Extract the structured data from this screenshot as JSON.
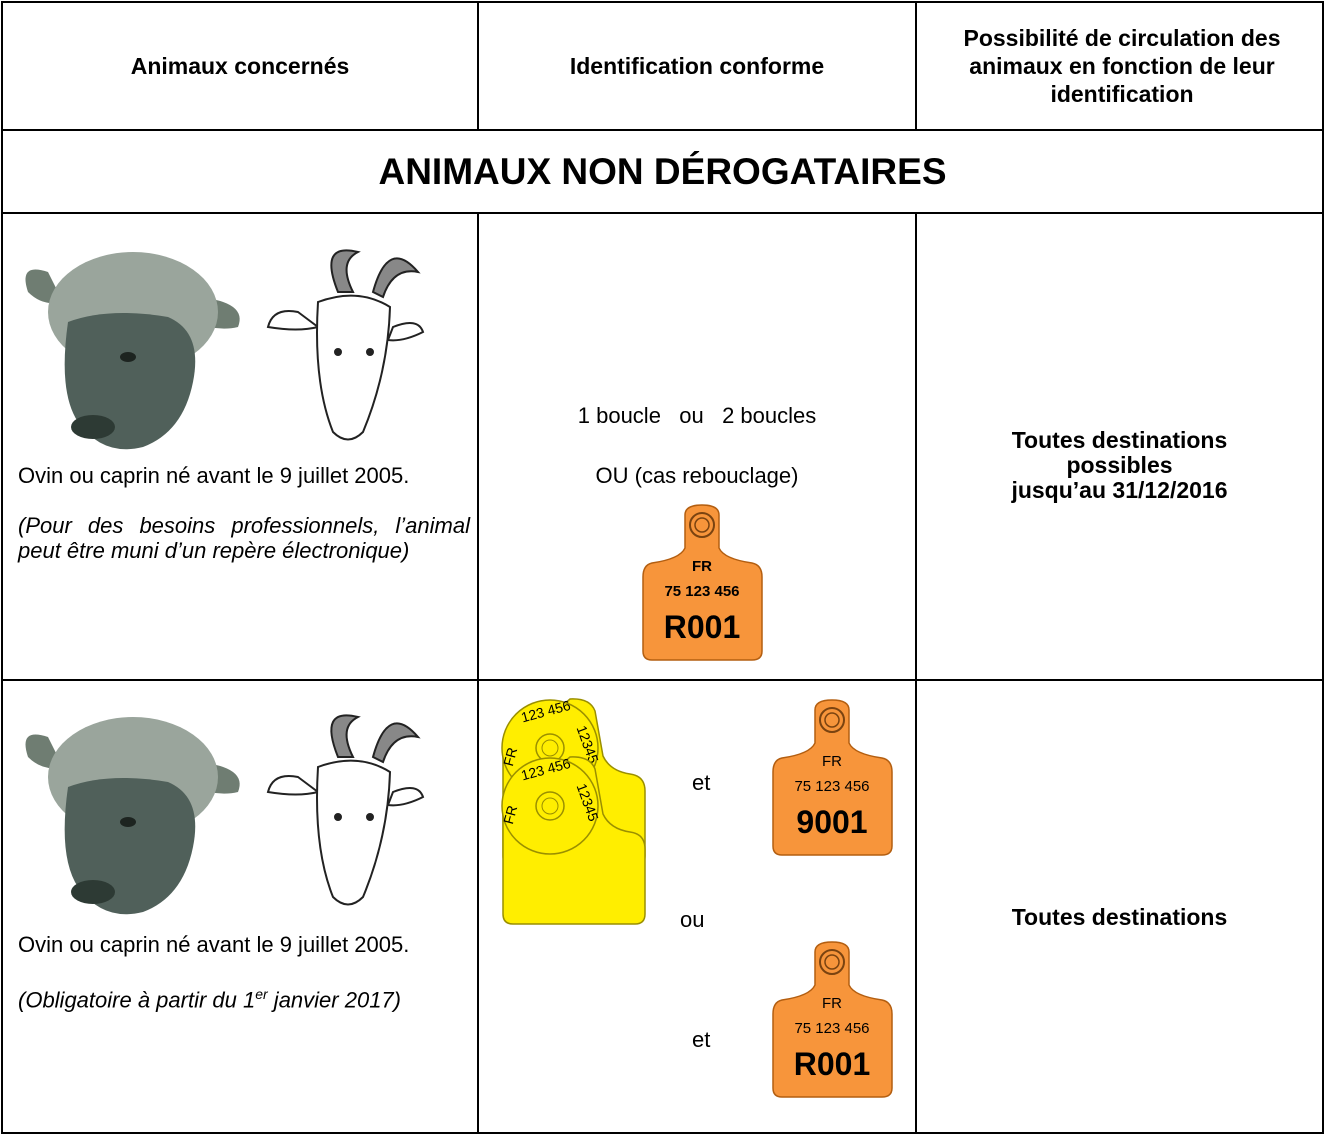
{
  "table": {
    "headers": [
      "Animaux concernés",
      "Identification conforme",
      "Possibilité de circulation des animaux en fonction de leur identification"
    ],
    "section_title": "ANIMAUX NON DÉROGATAIRES",
    "rows": [
      {
        "animals": {
          "text": "Ovin ou caprin né avant le 9 juillet 2005.",
          "note": "(Pour des besoins professionnels, l’animal peut être muni d’un repère électronique)"
        },
        "identification": {
          "line1": "1 boucle   ou   2 boucles",
          "line2": "OU (cas rebouclage)",
          "tag": {
            "country": "FR",
            "number": "75 123 456",
            "code": "R001"
          }
        },
        "circulation": [
          "Toutes destinations",
          "possibles",
          "jusqu’au 31/12/2016"
        ]
      },
      {
        "animals": {
          "text": "Ovin ou caprin né avant le 9 juillet 2005.",
          "note_before": "(Obligatoire à partir du 1",
          "note_sup": "er",
          "note_after": " janvier 2017)"
        },
        "identification": {
          "pairs": [
            {
              "yellow": {
                "country": "FR",
                "number": "123 456",
                "code": "12345"
              },
              "connector": "et",
              "orange": {
                "country": "FR",
                "number": "75 123 456",
                "code": "9001"
              }
            },
            {
              "yellow": {
                "country": "FR",
                "number": "123 456",
                "code": "12345"
              },
              "connector": "et",
              "orange": {
                "country": "FR",
                "number": "75 123 456",
                "code": "R001"
              }
            }
          ],
          "separator": "ou"
        },
        "circulation": [
          "Toutes destinations"
        ]
      }
    ]
  }
}
